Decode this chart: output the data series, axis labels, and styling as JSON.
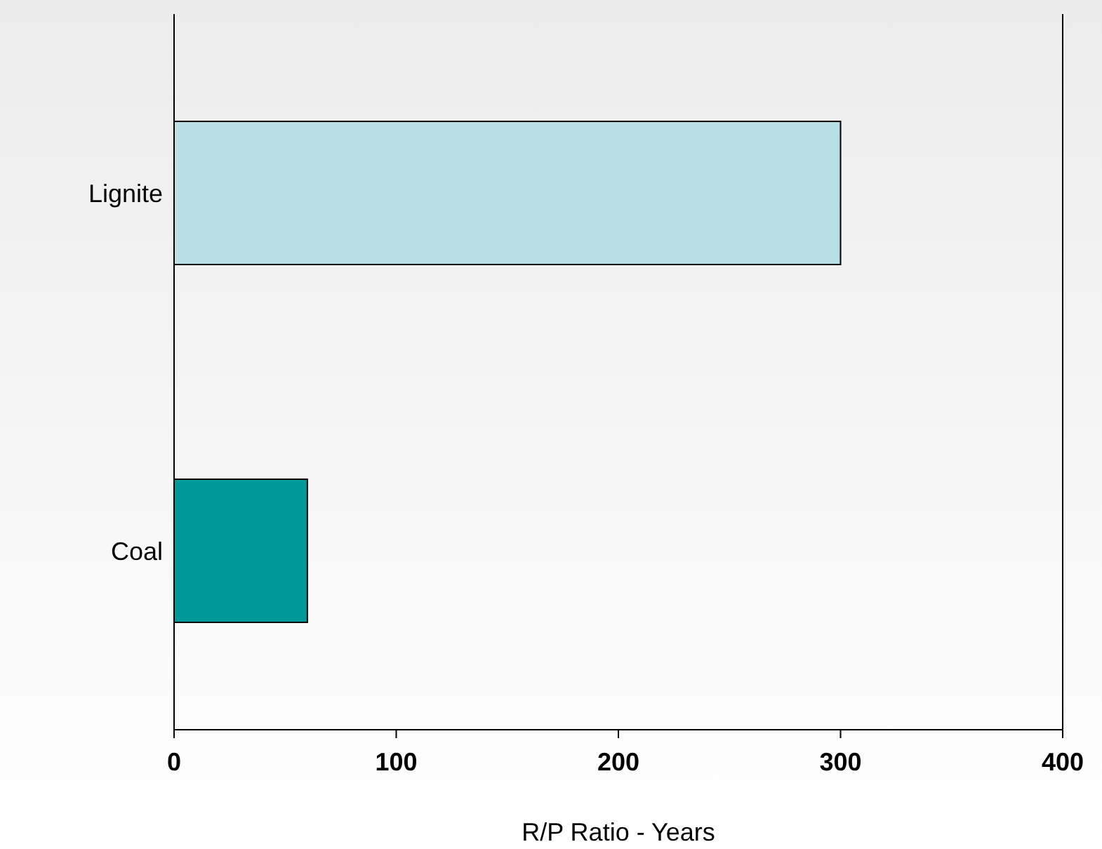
{
  "chart_data": {
    "type": "bar",
    "orientation": "horizontal",
    "categories": [
      "Lignite",
      "Coal"
    ],
    "colors": [
      "#b8e0e4",
      "#009999"
    ],
    "values": [
      300,
      60
    ],
    "xlim": [
      0,
      400
    ],
    "xticks": [
      0,
      100,
      200,
      300,
      400
    ],
    "xlabel": "R/P Ratio - Years"
  }
}
